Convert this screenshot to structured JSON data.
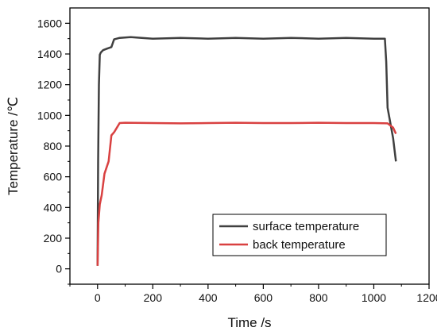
{
  "chart_data": {
    "type": "line",
    "xlabel": "Time /s",
    "ylabel": "Temperature /℃",
    "xlim": [
      -100,
      1200
    ],
    "ylim": [
      -100,
      1700
    ],
    "x_ticks": [
      0,
      200,
      400,
      600,
      800,
      1000,
      1200
    ],
    "y_ticks": [
      0,
      200,
      400,
      600,
      800,
      1000,
      1200,
      1400,
      1600
    ],
    "grid": false,
    "legend_position": "bottom-right",
    "series": [
      {
        "name": "surface temperature",
        "color": "#404040",
        "x": [
          0,
          2,
          5,
          8,
          12,
          20,
          35,
          50,
          60,
          80,
          120,
          160,
          200,
          300,
          400,
          500,
          600,
          700,
          800,
          900,
          1000,
          1040,
          1045,
          1050,
          1060,
          1070,
          1080
        ],
        "y": [
          20,
          700,
          1200,
          1395,
          1410,
          1425,
          1435,
          1445,
          1495,
          1505,
          1510,
          1505,
          1500,
          1505,
          1500,
          1505,
          1500,
          1505,
          1500,
          1505,
          1500,
          1500,
          1350,
          1050,
          950,
          850,
          700
        ]
      },
      {
        "name": "back temperature",
        "color": "#d94141",
        "x": [
          0,
          3,
          8,
          15,
          25,
          40,
          50,
          60,
          70,
          80,
          100,
          200,
          300,
          400,
          500,
          600,
          700,
          800,
          900,
          1000,
          1050,
          1070,
          1080
        ],
        "y": [
          20,
          300,
          420,
          480,
          620,
          700,
          870,
          890,
          920,
          950,
          952,
          950,
          948,
          950,
          952,
          950,
          950,
          952,
          950,
          950,
          948,
          920,
          880
        ]
      }
    ]
  }
}
